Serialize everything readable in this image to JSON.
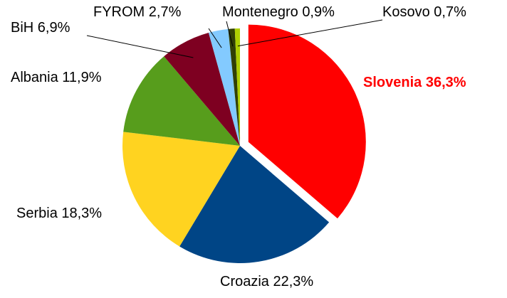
{
  "chart_data": {
    "type": "pie",
    "categories": [
      "Slovenia",
      "Croazia",
      "Serbia",
      "Albania",
      "BiH",
      "FYROM",
      "Montenegro",
      "Kosovo"
    ],
    "values": [
      36.3,
      22.3,
      18.3,
      11.9,
      6.9,
      2.7,
      0.9,
      0.7
    ],
    "value_labels": [
      "36,3%",
      "22,3%",
      "18,3%",
      "11,9%",
      "6,9%",
      "2,7%",
      "0,9%",
      "0,7%"
    ],
    "colors": [
      "#ff0000",
      "#004586",
      "#ffd320",
      "#579d1c",
      "#7e0021",
      "#83caff",
      "#314004",
      "#aecf00"
    ],
    "label_colors": [
      "#ff0000",
      "#000000",
      "#000000",
      "#000000",
      "#000000",
      "#000000",
      "#000000",
      "#000000"
    ],
    "exploded": [
      "Slovenia"
    ]
  }
}
